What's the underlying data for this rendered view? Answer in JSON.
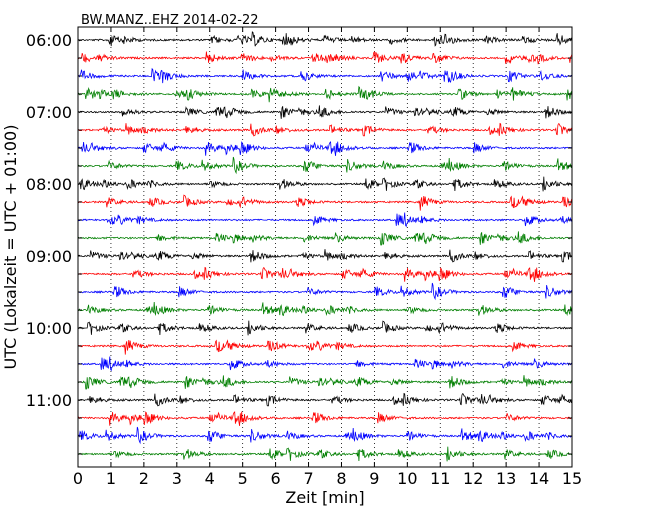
{
  "chart_data": {
    "type": "line",
    "title": "BW.MANZ..EHZ 2014-02-22",
    "xlabel": "Zeit  [min]",
    "ylabel": "UTC (Lokalzeit = UTC + 01:00)",
    "xlim": [
      0,
      15
    ],
    "x_ticks": [
      "0",
      "1",
      "2",
      "3",
      "4",
      "5",
      "6",
      "7",
      "8",
      "9",
      "10",
      "11",
      "12",
      "13",
      "14",
      "15"
    ],
    "y_ticks": [
      "06:00",
      "07:00",
      "08:00",
      "09:00",
      "10:00",
      "11:00"
    ],
    "y_tick_rows": [
      0,
      4,
      8,
      12,
      16,
      20
    ],
    "row_interval_minutes": 15,
    "rows": 24,
    "start_time": "06:00",
    "end_time": "12:00",
    "grid": "vertical-dotted",
    "series_colors": [
      "#000000",
      "#ff0000",
      "#0000ff",
      "#007f00"
    ]
  }
}
